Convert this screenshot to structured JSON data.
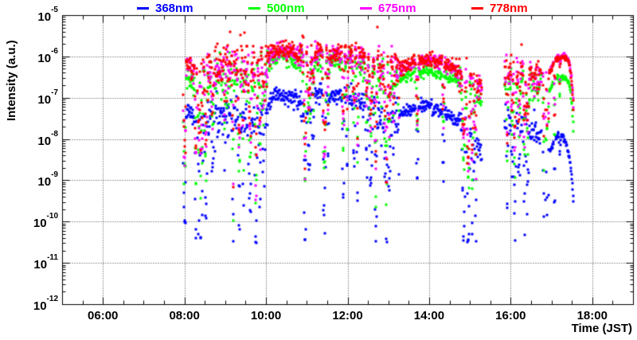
{
  "chart_data": {
    "type": "scatter",
    "title": "",
    "xlabel": "Time (JST)",
    "ylabel": "Intensity (a.u.)",
    "marker": "square",
    "x_axis": {
      "min_hour": 5,
      "max_hour": 19,
      "major_tick_hours": [
        6,
        8,
        10,
        12,
        14,
        16,
        18
      ],
      "major_tick_labels": [
        "06:00",
        "08:00",
        "10:00",
        "12:00",
        "14:00",
        "16:00",
        "18:00"
      ],
      "minor_tick_step_hours": 0.5,
      "grid": true
    },
    "y_axis": {
      "scale": "log",
      "min_exponent": -12,
      "max_exponent": -5,
      "tick_labels": [
        {
          "base": "10",
          "exp": "-5"
        },
        {
          "base": "10",
          "exp": "-6"
        },
        {
          "base": "10",
          "exp": "-7"
        },
        {
          "base": "10",
          "exp": "-8"
        },
        {
          "base": "10",
          "exp": "-9"
        },
        {
          "base": "10",
          "exp": "-10"
        },
        {
          "base": "10",
          "exp": "-11"
        },
        {
          "base": "10",
          "exp": "-12"
        }
      ],
      "grid": true
    },
    "legend": [
      {
        "label": "368nm",
        "color": "#0000ff"
      },
      {
        "label": "500nm",
        "color": "#00ff00"
      },
      {
        "label": "675nm",
        "color": "#ff00ff"
      },
      {
        "label": "778nm",
        "color": "#ff0000"
      }
    ],
    "grid_color": "#3a3a3a",
    "frame_color": "#000000",
    "sampling": {
      "step_hours": 0.01,
      "marker_px": 3,
      "seed": 1337,
      "floor_log10": -10.4
    },
    "segments": [
      {
        "t0": 7.95,
        "t1": 8.02,
        "sigma": 0.2,
        "dip_prob": 0.45,
        "dip_max": 3.0,
        "density": 1
      },
      {
        "t0": 8.02,
        "t1": 8.28,
        "sigma": 0.12,
        "dip_prob": 0.07,
        "dip_max": 2.6,
        "density": 1
      },
      {
        "t0": 8.28,
        "t1": 8.46,
        "sigma": 0.25,
        "dip_prob": 0.28,
        "dip_max": 3.2,
        "density": 1
      },
      {
        "t0": 8.46,
        "t1": 10.04,
        "sigma": 0.27,
        "dip_prob": 0.12,
        "dip_max": 3.2,
        "density": 1
      },
      {
        "t0": 10.04,
        "t1": 10.82,
        "sigma": 0.1,
        "dip_prob": 0.035,
        "dip_max": 2.2,
        "density": 1
      },
      {
        "t0": 10.82,
        "t1": 11.12,
        "sigma": 0.25,
        "dip_prob": 0.22,
        "dip_max": 3.4,
        "density": 1
      },
      {
        "t0": 11.12,
        "t1": 11.95,
        "sigma": 0.13,
        "dip_prob": 0.08,
        "dip_max": 3.0,
        "density": 1
      },
      {
        "t0": 11.95,
        "t1": 12.65,
        "sigma": 0.16,
        "dip_prob": 0.08,
        "dip_max": 2.8,
        "density": 1
      },
      {
        "t0": 12.65,
        "t1": 13.25,
        "sigma": 0.27,
        "dip_prob": 0.15,
        "dip_max": 3.3,
        "density": 1
      },
      {
        "t0": 13.25,
        "t1": 14.7,
        "sigma": 0.08,
        "dip_prob": 0.03,
        "dip_max": 1.6,
        "density": 1
      },
      {
        "t0": 14.7,
        "t1": 15.28,
        "sigma": 0.2,
        "dip_prob": 0.12,
        "dip_max": 2.4,
        "density": 1
      },
      {
        "t0": 15.83,
        "t1": 16.72,
        "sigma": 0.22,
        "dip_prob": 0.12,
        "dip_max": 2.9,
        "density": 1
      },
      {
        "t0": 16.72,
        "t1": 16.93,
        "sigma": 0.25,
        "dip_prob": 0.28,
        "dip_max": 2.6,
        "density": 0.45
      },
      {
        "t0": 16.93,
        "t1": 17.53,
        "sigma": 0.035,
        "dip_prob": 0.02,
        "dip_max": 1.2,
        "density": 1
      }
    ],
    "series": [
      {
        "name": "368nm",
        "color": "#0000ff",
        "dip_scale": 1.2,
        "envelope": [
          [
            7.97,
            -7.65
          ],
          [
            8.02,
            -7.32
          ],
          [
            8.1,
            -7.3
          ],
          [
            8.3,
            -7.7
          ],
          [
            8.45,
            -7.55
          ],
          [
            8.6,
            -7.6
          ],
          [
            8.8,
            -7.45
          ],
          [
            9.0,
            -7.5
          ],
          [
            9.2,
            -7.52
          ],
          [
            9.4,
            -7.45
          ],
          [
            9.6,
            -7.5
          ],
          [
            9.8,
            -7.48
          ],
          [
            10.0,
            -7.35
          ],
          [
            10.08,
            -7.02
          ],
          [
            10.3,
            -6.9
          ],
          [
            10.6,
            -6.94
          ],
          [
            10.85,
            -7.12
          ],
          [
            11.0,
            -7.18
          ],
          [
            11.12,
            -6.93
          ],
          [
            11.3,
            -6.92
          ],
          [
            11.5,
            -6.96
          ],
          [
            11.7,
            -6.94
          ],
          [
            11.95,
            -7.0
          ],
          [
            12.2,
            -7.06
          ],
          [
            12.45,
            -7.12
          ],
          [
            12.65,
            -7.2
          ],
          [
            12.8,
            -7.5
          ],
          [
            13.0,
            -7.55
          ],
          [
            13.2,
            -7.42
          ],
          [
            13.5,
            -7.27
          ],
          [
            13.9,
            -7.16
          ],
          [
            14.2,
            -7.26
          ],
          [
            14.5,
            -7.42
          ],
          [
            14.75,
            -7.6
          ],
          [
            15.0,
            -7.92
          ],
          [
            15.28,
            -8.3
          ],
          [
            15.85,
            -7.55
          ],
          [
            16.1,
            -7.62
          ],
          [
            16.3,
            -7.55
          ],
          [
            16.55,
            -7.72
          ],
          [
            16.72,
            -7.88
          ],
          [
            16.95,
            -8.28
          ],
          [
            17.05,
            -8.0
          ],
          [
            17.15,
            -7.88
          ],
          [
            17.25,
            -7.9
          ],
          [
            17.35,
            -8.12
          ],
          [
            17.42,
            -8.45
          ],
          [
            17.48,
            -8.95
          ],
          [
            17.53,
            -9.65
          ]
        ]
      },
      {
        "name": "500nm",
        "color": "#00ff00",
        "dip_scale": 0.95,
        "envelope": [
          [
            7.97,
            -6.9
          ],
          [
            8.02,
            -6.55
          ],
          [
            8.1,
            -6.5
          ],
          [
            8.3,
            -6.8
          ],
          [
            8.45,
            -6.58
          ],
          [
            8.6,
            -6.66
          ],
          [
            8.8,
            -6.53
          ],
          [
            9.0,
            -6.57
          ],
          [
            9.2,
            -6.6
          ],
          [
            9.4,
            -6.52
          ],
          [
            9.6,
            -6.56
          ],
          [
            9.8,
            -6.52
          ],
          [
            10.0,
            -6.46
          ],
          [
            10.08,
            -6.12
          ],
          [
            10.3,
            -6.0
          ],
          [
            10.6,
            -6.04
          ],
          [
            10.85,
            -6.22
          ],
          [
            11.0,
            -6.3
          ],
          [
            11.12,
            -6.1
          ],
          [
            11.3,
            -6.08
          ],
          [
            11.5,
            -6.12
          ],
          [
            11.7,
            -6.1
          ],
          [
            11.95,
            -6.15
          ],
          [
            12.2,
            -6.2
          ],
          [
            12.45,
            -6.26
          ],
          [
            12.65,
            -6.36
          ],
          [
            12.8,
            -6.6
          ],
          [
            13.0,
            -6.65
          ],
          [
            13.2,
            -6.56
          ],
          [
            13.5,
            -6.43
          ],
          [
            13.9,
            -6.34
          ],
          [
            14.2,
            -6.39
          ],
          [
            14.5,
            -6.49
          ],
          [
            14.75,
            -6.62
          ],
          [
            15.0,
            -6.8
          ],
          [
            15.28,
            -7.0
          ],
          [
            15.85,
            -6.62
          ],
          [
            16.1,
            -6.7
          ],
          [
            16.3,
            -6.62
          ],
          [
            16.55,
            -6.72
          ],
          [
            16.72,
            -6.78
          ],
          [
            16.95,
            -6.82
          ],
          [
            17.05,
            -6.56
          ],
          [
            17.15,
            -6.46
          ],
          [
            17.25,
            -6.47
          ],
          [
            17.35,
            -6.52
          ],
          [
            17.42,
            -6.66
          ],
          [
            17.48,
            -7.1
          ],
          [
            17.53,
            -7.95
          ]
        ]
      },
      {
        "name": "675nm",
        "color": "#ff00ff",
        "dip_scale": 0.85,
        "envelope": [
          [
            7.97,
            -6.64
          ],
          [
            8.02,
            -6.24
          ],
          [
            8.1,
            -6.19
          ],
          [
            8.3,
            -6.54
          ],
          [
            8.45,
            -6.29
          ],
          [
            8.6,
            -6.39
          ],
          [
            8.8,
            -6.24
          ],
          [
            9.0,
            -6.29
          ],
          [
            9.2,
            -6.34
          ],
          [
            9.4,
            -6.24
          ],
          [
            9.6,
            -6.29
          ],
          [
            9.8,
            -6.24
          ],
          [
            10.0,
            -6.19
          ],
          [
            10.08,
            -5.94
          ],
          [
            10.3,
            -5.84
          ],
          [
            10.6,
            -5.87
          ],
          [
            10.85,
            -6.04
          ],
          [
            11.0,
            -6.14
          ],
          [
            11.12,
            -5.92
          ],
          [
            11.3,
            -5.9
          ],
          [
            11.5,
            -5.94
          ],
          [
            11.7,
            -5.91
          ],
          [
            11.95,
            -5.96
          ],
          [
            12.2,
            -5.99
          ],
          [
            12.45,
            -6.04
          ],
          [
            12.65,
            -6.14
          ],
          [
            12.8,
            -6.39
          ],
          [
            13.0,
            -6.44
          ],
          [
            13.2,
            -6.34
          ],
          [
            13.5,
            -6.19
          ],
          [
            13.9,
            -6.09
          ],
          [
            14.2,
            -6.14
          ],
          [
            14.5,
            -6.24
          ],
          [
            14.75,
            -6.39
          ],
          [
            15.0,
            -6.59
          ],
          [
            15.28,
            -6.79
          ],
          [
            15.85,
            -6.34
          ],
          [
            16.1,
            -6.42
          ],
          [
            16.3,
            -6.34
          ],
          [
            16.55,
            -6.44
          ],
          [
            16.72,
            -6.49
          ],
          [
            16.95,
            -6.32
          ],
          [
            17.05,
            -6.06
          ],
          [
            17.15,
            -5.97
          ],
          [
            17.25,
            -5.96
          ],
          [
            17.35,
            -6.0
          ],
          [
            17.42,
            -6.14
          ],
          [
            17.48,
            -6.58
          ],
          [
            17.53,
            -7.28
          ]
        ]
      },
      {
        "name": "778nm",
        "color": "#ff0000",
        "dip_scale": 0.75,
        "envelope": [
          [
            7.97,
            -6.6
          ],
          [
            8.02,
            -6.2
          ],
          [
            8.1,
            -6.15
          ],
          [
            8.3,
            -6.5
          ],
          [
            8.45,
            -6.25
          ],
          [
            8.6,
            -6.35
          ],
          [
            8.8,
            -6.2
          ],
          [
            9.0,
            -6.25
          ],
          [
            9.2,
            -6.3
          ],
          [
            9.4,
            -6.2
          ],
          [
            9.6,
            -6.25
          ],
          [
            9.8,
            -6.2
          ],
          [
            10.0,
            -6.15
          ],
          [
            10.08,
            -5.9
          ],
          [
            10.3,
            -5.8
          ],
          [
            10.6,
            -5.83
          ],
          [
            10.85,
            -6.0
          ],
          [
            11.0,
            -6.1
          ],
          [
            11.12,
            -5.88
          ],
          [
            11.3,
            -5.86
          ],
          [
            11.5,
            -5.9
          ],
          [
            11.7,
            -5.87
          ],
          [
            11.95,
            -5.92
          ],
          [
            12.2,
            -5.95
          ],
          [
            12.45,
            -6.0
          ],
          [
            12.65,
            -6.1
          ],
          [
            12.8,
            -6.35
          ],
          [
            13.0,
            -6.4
          ],
          [
            13.2,
            -6.3
          ],
          [
            13.5,
            -6.15
          ],
          [
            13.9,
            -6.05
          ],
          [
            14.2,
            -6.1
          ],
          [
            14.5,
            -6.2
          ],
          [
            14.75,
            -6.35
          ],
          [
            15.0,
            -6.55
          ],
          [
            15.28,
            -6.75
          ],
          [
            15.85,
            -6.3
          ],
          [
            16.1,
            -6.38
          ],
          [
            16.3,
            -6.3
          ],
          [
            16.55,
            -6.4
          ],
          [
            16.72,
            -6.45
          ],
          [
            16.95,
            -6.35
          ],
          [
            17.05,
            -6.1
          ],
          [
            17.15,
            -6.0
          ],
          [
            17.25,
            -5.99
          ],
          [
            17.35,
            -6.03
          ],
          [
            17.42,
            -6.2
          ],
          [
            17.48,
            -6.65
          ],
          [
            17.53,
            -7.35
          ]
        ]
      }
    ]
  }
}
